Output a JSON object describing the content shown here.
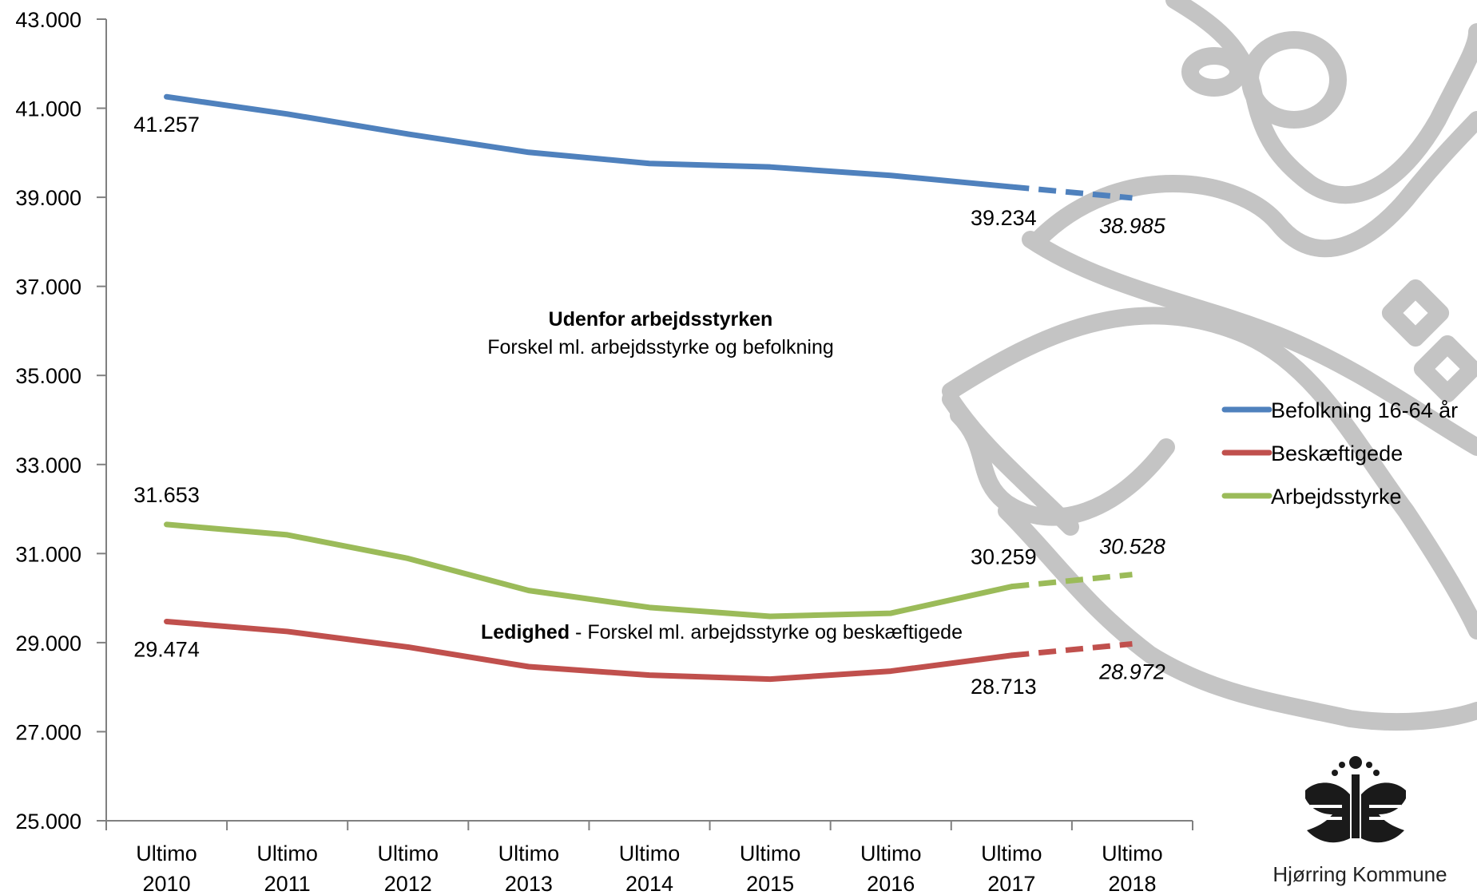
{
  "chart_data": {
    "type": "line",
    "categories": [
      "Ultimo 2010",
      "Ultimo 2011",
      "Ultimo 2012",
      "Ultimo 2013",
      "Ultimo 2014",
      "Ultimo 2015",
      "Ultimo 2016",
      "Ultimo 2017",
      "Ultimo 2018"
    ],
    "category_lines": [
      [
        "Ultimo",
        "2010"
      ],
      [
        "Ultimo",
        "2011"
      ],
      [
        "Ultimo",
        "2012"
      ],
      [
        "Ultimo",
        "2013"
      ],
      [
        "Ultimo",
        "2014"
      ],
      [
        "Ultimo",
        "2015"
      ],
      [
        "Ultimo",
        "2016"
      ],
      [
        "Ultimo",
        "2017"
      ],
      [
        "Ultimo",
        "2018"
      ]
    ],
    "ylim": [
      25000,
      43000
    ],
    "yticks": [
      25000,
      27000,
      29000,
      31000,
      33000,
      35000,
      37000,
      39000,
      41000,
      43000
    ],
    "ytick_labels": [
      "25.000",
      "27.000",
      "29.000",
      "31.000",
      "33.000",
      "35.000",
      "37.000",
      "39.000",
      "41.000",
      "43.000"
    ],
    "grid": false,
    "legend_position": "right",
    "forecast_from_index": 7,
    "series": [
      {
        "name": "Befolkning 16-64 år",
        "color": "#4f81bd",
        "values": [
          41257,
          40870,
          40420,
          40010,
          39760,
          39680,
          39490,
          39234,
          38985
        ],
        "labels": [
          {
            "index": 0,
            "text": "41.257"
          },
          {
            "index": 7,
            "text": "39.234"
          },
          {
            "index": 8,
            "text": "38.985",
            "italic": true
          }
        ]
      },
      {
        "name": "Beskæftigede",
        "color": "#c0504d",
        "values": [
          29474,
          29250,
          28900,
          28460,
          28270,
          28180,
          28360,
          28713,
          28972
        ],
        "labels": [
          {
            "index": 0,
            "text": "29.474"
          },
          {
            "index": 7,
            "text": "28.713"
          },
          {
            "index": 8,
            "text": "28.972",
            "italic": true
          }
        ]
      },
      {
        "name": "Arbejdsstyrke",
        "color": "#9bbb59",
        "values": [
          31653,
          31420,
          30890,
          30170,
          29790,
          29590,
          29660,
          30259,
          30528
        ],
        "labels": [
          {
            "index": 0,
            "text": "31.653"
          },
          {
            "index": 7,
            "text": "30.259"
          },
          {
            "index": 8,
            "text": "30.528",
            "italic": true
          }
        ]
      }
    ],
    "annotations": {
      "outside_title": "Udenfor arbejdsstyrken",
      "outside_text": "Forskel ml. arbejdsstyrke og befolkning",
      "unemployment_bold": "Ledighed",
      "unemployment_text": " - Forskel ml. arbejdsstyrke og beskæftigede"
    }
  },
  "logo": {
    "name": "hjorring-kommune-logo",
    "caption": "Hjørring Kommune"
  }
}
